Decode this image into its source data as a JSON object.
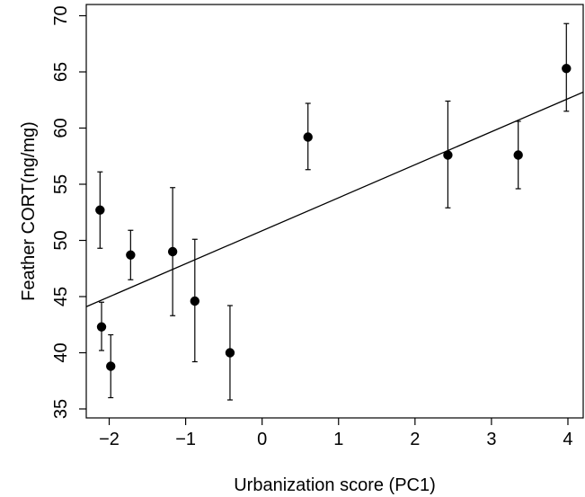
{
  "chart_data": {
    "type": "scatter",
    "title": "",
    "xlabel": "Urbanization score (PC1)",
    "ylabel": "Feather CORT(ng/mg)",
    "xlim": [
      -2.3,
      4.2
    ],
    "ylim": [
      34.2,
      71.0
    ],
    "xticks": [
      -2,
      -1,
      0,
      1,
      2,
      3,
      4
    ],
    "xtick_labels": [
      "−2",
      "−1",
      "0",
      "1",
      "2",
      "3",
      "4"
    ],
    "yticks": [
      35,
      40,
      45,
      50,
      55,
      60,
      65,
      70
    ],
    "ytick_labels": [
      "35",
      "40",
      "45",
      "50",
      "55",
      "60",
      "65",
      "70"
    ],
    "grid": false,
    "points": [
      {
        "x": -2.12,
        "y": 52.7,
        "lo": 49.3,
        "hi": 56.1
      },
      {
        "x": -2.1,
        "y": 42.3,
        "lo": 40.2,
        "hi": 44.5
      },
      {
        "x": -1.98,
        "y": 38.8,
        "lo": 36.0,
        "hi": 41.6
      },
      {
        "x": -1.72,
        "y": 48.7,
        "lo": 46.5,
        "hi": 50.9
      },
      {
        "x": -1.17,
        "y": 49.0,
        "lo": 43.3,
        "hi": 54.7
      },
      {
        "x": -0.88,
        "y": 44.6,
        "lo": 39.2,
        "hi": 50.1
      },
      {
        "x": -0.42,
        "y": 40.0,
        "lo": 35.8,
        "hi": 44.2
      },
      {
        "x": 0.6,
        "y": 59.2,
        "lo": 56.3,
        "hi": 62.2
      },
      {
        "x": 2.43,
        "y": 57.6,
        "lo": 52.9,
        "hi": 62.4
      },
      {
        "x": 3.35,
        "y": 57.6,
        "lo": 54.6,
        "hi": 60.6
      },
      {
        "x": 3.98,
        "y": 65.3,
        "lo": 61.5,
        "hi": 69.3
      }
    ],
    "fit_line": {
      "x": [
        -2.3,
        4.2
      ],
      "y": [
        44.1,
        63.2
      ]
    }
  }
}
